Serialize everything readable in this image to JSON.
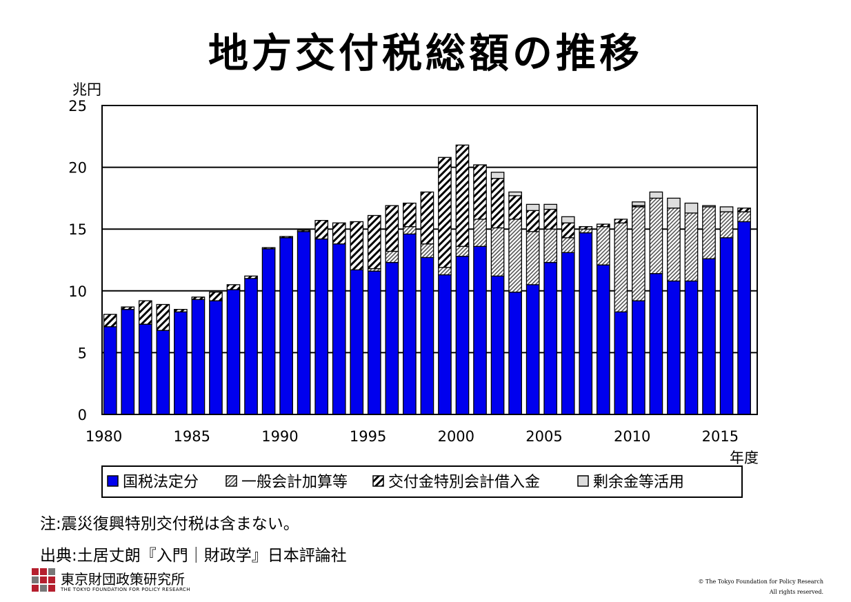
{
  "page": {
    "title": "地方交付税総額の推移",
    "note": "注:震災復興特別交付税は含まない。",
    "source": "出典:土居丈朗『入門｜財政学』日本評論社",
    "footer_org_name": "東京財団政策研究所",
    "footer_org_name_en": "THE TOKYO FOUNDATION FOR POLICY RESEARCH",
    "copyright_line1": "© The Tokyo Foundation for Policy Research",
    "copyright_line2": "All rights reserved."
  },
  "chart_data": {
    "type": "bar",
    "stacked": true,
    "title": "",
    "ylabel": "兆円",
    "xlabel": "年度",
    "ylim": [
      0,
      25
    ],
    "yticks": [
      0,
      5,
      10,
      15,
      20,
      25
    ],
    "xtick_labels": [
      "1980",
      "1985",
      "1990",
      "1995",
      "2000",
      "2005",
      "2010",
      "2015"
    ],
    "grid": true,
    "legend_position": "bottom",
    "categories": [
      "1980",
      "1981",
      "1982",
      "1983",
      "1984",
      "1985",
      "1986",
      "1987",
      "1988",
      "1989",
      "1990",
      "1991",
      "1992",
      "1993",
      "1994",
      "1995",
      "1996",
      "1997",
      "1998",
      "1999",
      "2000",
      "2001",
      "2002",
      "2003",
      "2004",
      "2005",
      "2006",
      "2007",
      "2008",
      "2009",
      "2010",
      "2011",
      "2012",
      "2013",
      "2014",
      "2015",
      "2016"
    ],
    "series": [
      {
        "name": "国税法定分",
        "pattern": "solid",
        "color": "#0000ee",
        "values": [
          7.1,
          8.5,
          7.3,
          6.8,
          8.3,
          9.3,
          9.2,
          10.1,
          11.0,
          13.4,
          14.3,
          14.8,
          14.2,
          13.8,
          11.7,
          11.6,
          12.3,
          14.6,
          12.7,
          11.3,
          12.8,
          13.6,
          11.2,
          9.9,
          10.5,
          12.3,
          13.1,
          14.7,
          12.1,
          8.3,
          9.2,
          11.4,
          10.8,
          10.8,
          12.6,
          14.3,
          15.6
        ]
      },
      {
        "name": "一般会計加算等",
        "pattern": "dense-hatch",
        "color": "#555555",
        "values": [
          0,
          0,
          0,
          0,
          0,
          0,
          0,
          0,
          0,
          0,
          0,
          0,
          0,
          0,
          0,
          0.2,
          0.9,
          0.6,
          1.1,
          0.6,
          0.8,
          2.2,
          3.9,
          5.9,
          4.3,
          2.7,
          1.2,
          0.3,
          3.1,
          7.2,
          7.6,
          6.1,
          5.9,
          5.5,
          4.2,
          2.1,
          0.8
        ]
      },
      {
        "name": "交付金特別会計借入金",
        "pattern": "hatch",
        "color": "#000000",
        "values": [
          1.0,
          0.2,
          1.9,
          2.1,
          0.2,
          0.2,
          0.7,
          0.4,
          0.2,
          0.1,
          0.1,
          0.1,
          1.5,
          1.7,
          3.9,
          4.3,
          3.7,
          1.9,
          4.2,
          8.9,
          8.2,
          4.4,
          4.0,
          1.9,
          1.7,
          1.6,
          1.2,
          0.2,
          0.2,
          0.3,
          0.1,
          0,
          0,
          0,
          0,
          0,
          0.3
        ]
      },
      {
        "name": "剰余金等活用",
        "pattern": "light",
        "color": "#dddddd",
        "values": [
          0,
          0,
          0,
          0,
          0,
          0,
          0,
          0,
          0,
          0,
          0,
          0,
          0,
          0,
          0,
          0,
          0,
          0,
          0,
          0,
          0,
          0,
          0.5,
          0.3,
          0.5,
          0.4,
          0.5,
          0,
          0,
          0,
          0.3,
          0.5,
          0.8,
          0.8,
          0.1,
          0.4,
          0
        ]
      }
    ]
  }
}
